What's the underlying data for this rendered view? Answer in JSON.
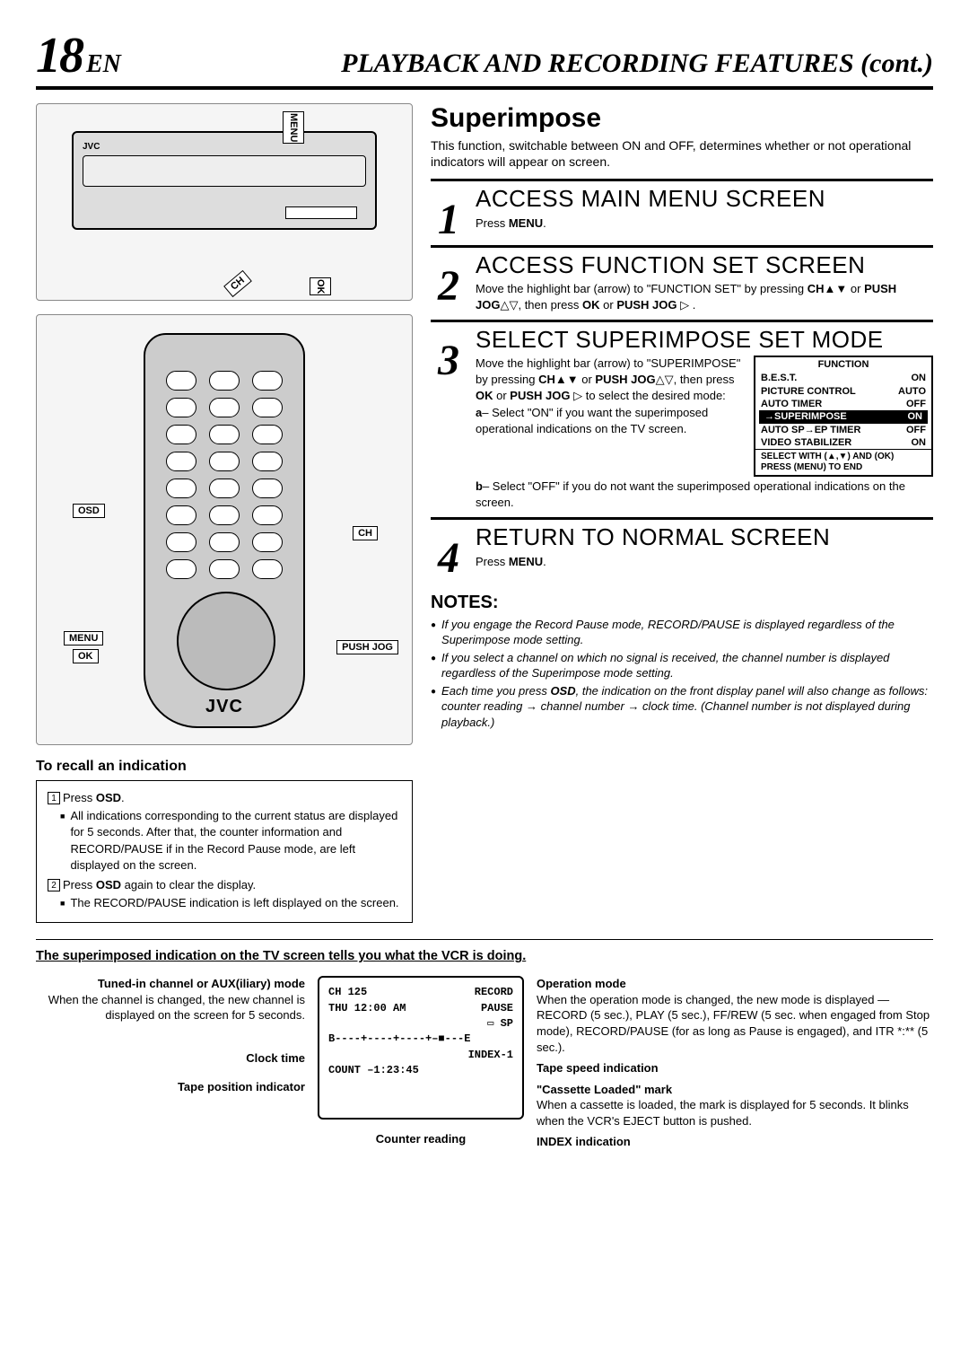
{
  "header": {
    "page_number": "18",
    "page_lang": "EN",
    "section_title": "PLAYBACK AND RECORDING FEATURES (cont.)"
  },
  "illus": {
    "vcr_labels": {
      "menu": "MENU",
      "ch": "CH",
      "ok": "OK"
    },
    "remote_labels": {
      "osd": "OSD",
      "ch": "CH",
      "menu": "MENU",
      "ok": "OK",
      "push_jog": "PUSH JOG"
    },
    "brand": "JVC"
  },
  "feature": {
    "title": "Superimpose",
    "desc": "This function, switchable between ON and OFF, determines whether or not operational indicators will appear on screen."
  },
  "steps": [
    {
      "num": "1",
      "title": "ACCESS MAIN MENU SCREEN",
      "text": "Press <b>MENU</b>."
    },
    {
      "num": "2",
      "title": "ACCESS FUNCTION SET SCREEN",
      "text": "Move the highlight bar (arrow) to \"FUNCTION SET\" by pressing <b>CH</b>▲▼ or <b>PUSH JOG</b>△▽, then press <b>OK</b> or <b>PUSH JOG</b> ▷ ."
    },
    {
      "num": "3",
      "title": "SELECT SUPERIMPOSE SET MODE",
      "text_a": "Move the highlight bar (arrow) to \"SUPERIMPOSE\" by pressing <b>CH</b>▲▼ or <b>PUSH JOG</b>△▽, then press <b>OK</b> or <b>PUSH JOG</b> ▷ to select the desired mode:",
      "opt_a": "<b>a</b>– Select \"ON\" if you want the superimposed operational indications on the TV screen.",
      "opt_b": "<b>b</b>– Select \"OFF\" if you do not want the superimposed operational indications on the screen."
    },
    {
      "num": "4",
      "title": "RETURN TO NORMAL SCREEN",
      "text": "Press <b>MENU</b>."
    }
  ],
  "function_box": {
    "head": "FUNCTION",
    "rows": [
      {
        "label": "B.E.S.T.",
        "val": "ON"
      },
      {
        "label": "PICTURE CONTROL",
        "val": "AUTO"
      },
      {
        "label": "AUTO TIMER",
        "val": "OFF"
      },
      {
        "label": "→SUPERIMPOSE",
        "val": "ON",
        "hl": true
      },
      {
        "label": "AUTO SP→EP TIMER",
        "val": "OFF"
      },
      {
        "label": "VIDEO STABILIZER",
        "val": "ON"
      }
    ],
    "foot1": "SELECT WITH (▲,▼) AND (OK)",
    "foot2": "PRESS (MENU) TO END"
  },
  "recall": {
    "title": "To recall an indication",
    "line1_pre": "Press ",
    "line1_b": "OSD",
    "line1_post": ".",
    "b1": "All indications corresponding to the current status are displayed for 5 seconds. After that, the counter information and RECORD/PAUSE if in the Record Pause mode, are left displayed on the screen.",
    "line2_pre": "Press ",
    "line2_b": "OSD",
    "line2_post": " again to clear the display.",
    "b2": "The RECORD/PAUSE indication is left displayed on the screen."
  },
  "notes": {
    "title": "NOTES:",
    "items": [
      "If you engage the Record Pause mode, RECORD/PAUSE is displayed regardless of the Superimpose mode setting.",
      "If you select a channel on which no signal is received, the channel number is displayed regardless of the Superimpose mode setting.",
      "Each time you press <b>OSD</b>, the indication on the front display panel will also change as follows: counter reading → channel number → clock time. (Channel number is not displayed during playback.)"
    ]
  },
  "tv": {
    "lead": "The superimposed indication on the TV screen tells you what the VCR is doing.",
    "left": {
      "l1": "Tuned-in channel or AUX(iliary) mode",
      "l1d": "When the channel is changed, the new channel is displayed on the screen for 5 seconds.",
      "l2": "Clock time",
      "l3": "Tape position indicator"
    },
    "screen": {
      "ch": "CH   125",
      "rec": "RECORD",
      "thu": "THU 12:00 AM",
      "pause": "PAUSE",
      "sp": "▭ SP",
      "bar": "B----+----+----+–■---E",
      "index": "INDEX-1",
      "count": "COUNT    –1:23:45"
    },
    "counter_label": "Counter reading",
    "right": {
      "r1": "Operation mode",
      "r1d": "When the operation mode is changed, the new mode is displayed — RECORD (5 sec.), PLAY (5 sec.), FF/REW (5 sec. when engaged from Stop mode), RECORD/PAUSE (for as long as Pause is engaged), and ITR *:** (5 sec.).",
      "r2": "Tape speed indication",
      "r3": "\"Cassette Loaded\" mark",
      "r3d": "When a cassette is loaded, the mark is displayed for 5 seconds. It blinks when the VCR's EJECT button is pushed.",
      "r4": "INDEX indication"
    }
  }
}
